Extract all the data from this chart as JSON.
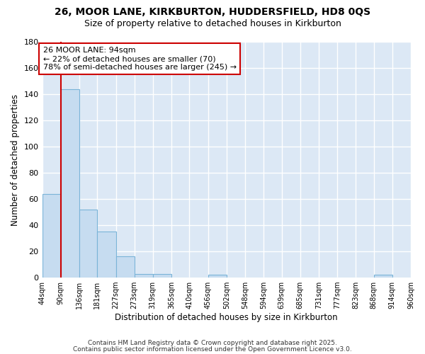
{
  "title1": "26, MOOR LANE, KIRKBURTON, HUDDERSFIELD, HD8 0QS",
  "title2": "Size of property relative to detached houses in Kirkburton",
  "xlabel": "Distribution of detached houses by size in Kirkburton",
  "ylabel": "Number of detached properties",
  "categories": [
    "44sqm",
    "90sqm",
    "136sqm",
    "181sqm",
    "227sqm",
    "273sqm",
    "319sqm",
    "365sqm",
    "410sqm",
    "456sqm",
    "502sqm",
    "548sqm",
    "594sqm",
    "639sqm",
    "685sqm",
    "731sqm",
    "777sqm",
    "823sqm",
    "868sqm",
    "914sqm",
    "960sqm"
  ],
  "bar_edges": [
    44,
    90,
    136,
    181,
    227,
    273,
    319,
    365,
    410,
    456,
    502,
    548,
    594,
    639,
    685,
    731,
    777,
    823,
    868,
    914,
    960
  ],
  "bar_heights": [
    64,
    144,
    52,
    35,
    16,
    3,
    3,
    0,
    0,
    2,
    0,
    0,
    0,
    0,
    0,
    0,
    0,
    0,
    2,
    0
  ],
  "bar_color": "#c6dcf0",
  "bar_edge_color": "#7ab4d8",
  "property_line_x": 90,
  "property_line_color": "#cc0000",
  "annotation_text": "26 MOOR LANE: 94sqm\n← 22% of detached houses are smaller (70)\n78% of semi-detached houses are larger (245) →",
  "annotation_box_color": "#ffffff",
  "annotation_box_edge": "#cc0000",
  "ylim": [
    0,
    180
  ],
  "yticks": [
    0,
    20,
    40,
    60,
    80,
    100,
    120,
    140,
    160,
    180
  ],
  "bg_color": "#dce8f5",
  "fig_bg_color": "#ffffff",
  "grid_color": "#ffffff",
  "footer1": "Contains HM Land Registry data © Crown copyright and database right 2025.",
  "footer2": "Contains public sector information licensed under the Open Government Licence v3.0."
}
